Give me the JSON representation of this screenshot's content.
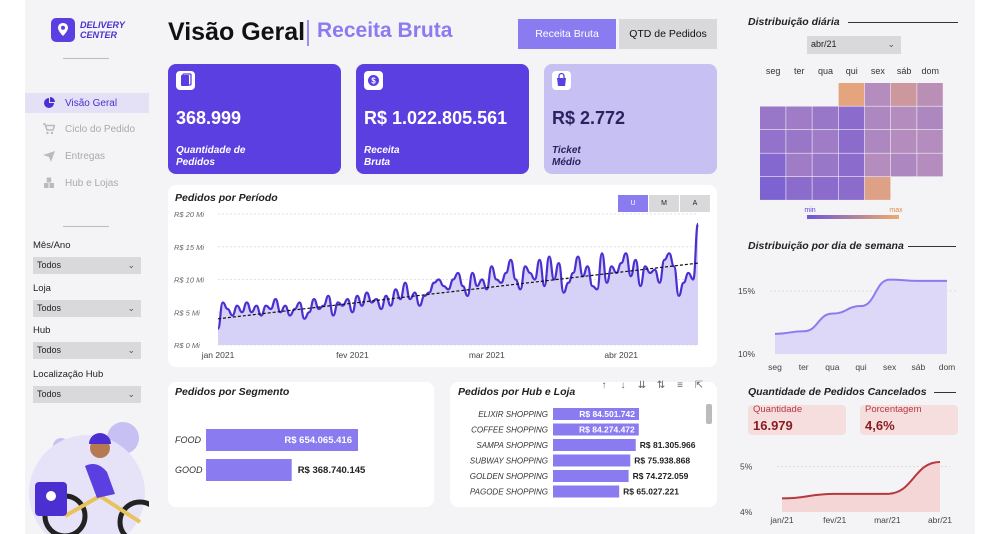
{
  "brand": {
    "line1": "DELIVERY",
    "line2": "CENTER"
  },
  "nav": [
    {
      "label": "Visão Geral",
      "active": true
    },
    {
      "label": "Ciclo do Pedido"
    },
    {
      "label": "Entregas"
    },
    {
      "label": "Hub e Lojas"
    }
  ],
  "filters": [
    {
      "label": "Mês/Ano",
      "value": "Todos"
    },
    {
      "label": "Loja",
      "value": "Todos"
    },
    {
      "label": "Hub",
      "value": "Todos"
    },
    {
      "label": "Localização Hub",
      "value": "Todos"
    }
  ],
  "header": {
    "title": "Visão Geral",
    "subtitle": "Receita Bruta",
    "btn_receita": "Receita Bruta",
    "btn_qtd": "QTD de Pedidos"
  },
  "kpis": [
    {
      "value": "368.999",
      "label1": "Quantidade de",
      "label2": "Pedidos"
    },
    {
      "value": "R$ 1.022.805.561",
      "label1": "Receita",
      "label2": "Bruta"
    },
    {
      "value": "R$ 2.772",
      "label1": "Ticket",
      "label2": "Médio"
    }
  ],
  "period_chart": {
    "title": "Pedidos por Período",
    "toggles": [
      "U",
      "M",
      "A"
    ],
    "y_ticks": [
      "R$ 0 Mi",
      "R$ 5 Mi",
      "R$ 10 Mi",
      "R$ 15 Mi",
      "R$ 20 Mi"
    ],
    "x_ticks": [
      "jan 2021",
      "fev 2021",
      "mar 2021",
      "abr 2021"
    ],
    "values": [
      2.5,
      6.5,
      5.5,
      4.5,
      6,
      5,
      6.5,
      5,
      6,
      4.5,
      6,
      5.5,
      7,
      5,
      6,
      4.5,
      5.5,
      6.5,
      4,
      5,
      7,
      5.5,
      6,
      7.5,
      4.5,
      6.5,
      6,
      7,
      5,
      7.5,
      6,
      8,
      6.5,
      7,
      5.5,
      7.5,
      6,
      8.5,
      7,
      9.5,
      7,
      8,
      6,
      7.5,
      8,
      9.5,
      10,
      9,
      8.5,
      10,
      11,
      9,
      7.5,
      11,
      9,
      10,
      8.5,
      12,
      10,
      9.5,
      11,
      13,
      10,
      8.5,
      12,
      11,
      10,
      13,
      9,
      13.5,
      10,
      12.5,
      8,
      9.5,
      11,
      13.5,
      10.5,
      12,
      9,
      8.5,
      14,
      9.5,
      12,
      11,
      12.5,
      14,
      10.5,
      13,
      9,
      12,
      11,
      11.5,
      9.5,
      13,
      14,
      12,
      7.5,
      9.5,
      11,
      10,
      18.5
    ],
    "trend_start": 4,
    "trend_end": 12.5
  },
  "segment_chart": {
    "title": "Pedidos por Segmento",
    "categories": [
      "FOOD",
      "GOOD"
    ],
    "values": [
      654065416,
      368740145
    ],
    "labels": [
      "R$ 654.065.416",
      "R$ 368.740.145"
    ]
  },
  "hub_chart": {
    "title": "Pedidos por Hub e Loja",
    "categories": [
      "ELIXIR SHOPPING",
      "COFFEE SHOPPING",
      "SAMPA SHOPPING",
      "SUBWAY SHOPPING",
      "GOLDEN SHOPPING",
      "PAGODE SHOPPING"
    ],
    "values": [
      84501742,
      84274472,
      81305966,
      75938868,
      74272059,
      65027221
    ],
    "labels": [
      "R$ 84.501.742",
      "R$ 84.274.472",
      "R$ 81.305.966",
      "R$ 75.938.868",
      "R$ 74.272.059",
      "R$ 65.027.221"
    ]
  },
  "heatmap": {
    "title": "Distribuição diária",
    "month": "abr/21",
    "days": [
      "seg",
      "ter",
      "qua",
      "qui",
      "sex",
      "sáb",
      "dom"
    ],
    "rows": [
      [
        null,
        null,
        null,
        0.9,
        0.5,
        0.7,
        0.55
      ],
      [
        0.3,
        0.35,
        0.3,
        0.2,
        0.45,
        0.5,
        0.45
      ],
      [
        0.25,
        0.3,
        0.35,
        0.2,
        0.45,
        0.5,
        0.5
      ],
      [
        0.15,
        0.35,
        0.3,
        0.2,
        0.5,
        0.45,
        0.5
      ],
      [
        0.1,
        0.2,
        0.2,
        0.2,
        0.85,
        null,
        null
      ]
    ],
    "legend_min": "min",
    "legend_max": "max"
  },
  "weekday_chart": {
    "title": "Distribuição por dia de semana",
    "days": [
      "seg",
      "ter",
      "qua",
      "qui",
      "sex",
      "sáb",
      "dom"
    ],
    "values": [
      11.6,
      11.8,
      13.2,
      13.8,
      15.9,
      15.8,
      15.8
    ],
    "y_ticks": [
      "15%",
      "10%"
    ]
  },
  "cancel": {
    "title": "Quantidade de Pedidos Cancelados",
    "qty_label": "Quantidade",
    "qty_value": "16.979",
    "pct_label": "Porcentagem",
    "pct_value": "4,6%",
    "months": [
      "jan/21",
      "fev/21",
      "mar/21",
      "abr/21"
    ],
    "values": [
      4.3,
      4.4,
      4.4,
      5.1
    ],
    "y_ticks": [
      "5%",
      "4%"
    ]
  },
  "colors": {
    "primary": "#5b3fe0",
    "light": "#c7c0f3",
    "accent": "#8b7bf0",
    "cancel": "#b5393f"
  }
}
